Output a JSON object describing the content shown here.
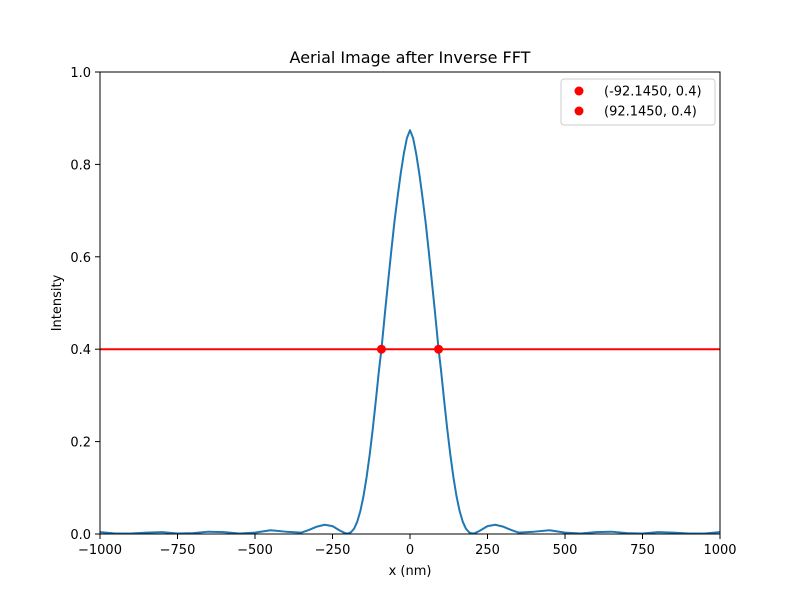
{
  "chart_data": {
    "type": "line",
    "title": "Aerial Image after Inverse FFT",
    "xlabel": "x (nm)",
    "ylabel": "Intensity",
    "xlim": [
      -1000,
      1000
    ],
    "ylim": [
      0,
      1.0
    ],
    "xticks": [
      -1000,
      -750,
      -500,
      -250,
      0,
      250,
      500,
      750,
      1000
    ],
    "xtick_labels": [
      "−1000",
      "−750",
      "−500",
      "−250",
      "0",
      "250",
      "500",
      "750",
      "1000"
    ],
    "yticks": [
      0.0,
      0.2,
      0.4,
      0.6,
      0.8,
      1.0
    ],
    "ytick_labels": [
      "0.0",
      "0.2",
      "0.4",
      "0.6",
      "0.8",
      "1.0"
    ],
    "grid": false,
    "legend_position": "top-right",
    "series": [
      {
        "kind": "line",
        "color": "#1f77b4",
        "x": [
          -1000,
          -950,
          -900,
          -850,
          -800,
          -750,
          -700,
          -650,
          -600,
          -550,
          -500,
          -450,
          -400,
          -350,
          -325,
          -300,
          -275,
          -250,
          -225,
          -210,
          -200,
          -190,
          -180,
          -170,
          -160,
          -150,
          -140,
          -130,
          -120,
          -110,
          -100,
          -92.145,
          -80,
          -70,
          -60,
          -50,
          -40,
          -30,
          -20,
          -10,
          0,
          10,
          20,
          30,
          40,
          50,
          60,
          70,
          80,
          92.145,
          100,
          110,
          120,
          130,
          140,
          150,
          160,
          170,
          180,
          190,
          200,
          210,
          225,
          250,
          275,
          300,
          325,
          350,
          400,
          450,
          500,
          550,
          600,
          650,
          700,
          750,
          800,
          850,
          900,
          950,
          1000
        ],
        "y": [
          0.004,
          0.001,
          0.001,
          0.003,
          0.004,
          0.001,
          0.002,
          0.005,
          0.004,
          0.001,
          0.003,
          0.008,
          0.005,
          0.003,
          0.009,
          0.016,
          0.02,
          0.017,
          0.007,
          0.002,
          0.001,
          0.004,
          0.012,
          0.027,
          0.05,
          0.082,
          0.123,
          0.172,
          0.228,
          0.29,
          0.355,
          0.4,
          0.484,
          0.55,
          0.615,
          0.677,
          0.73,
          0.78,
          0.823,
          0.857,
          0.874,
          0.857,
          0.823,
          0.78,
          0.73,
          0.677,
          0.615,
          0.55,
          0.484,
          0.4,
          0.355,
          0.29,
          0.228,
          0.172,
          0.123,
          0.082,
          0.05,
          0.027,
          0.012,
          0.004,
          0.001,
          0.002,
          0.007,
          0.017,
          0.02,
          0.016,
          0.009,
          0.003,
          0.005,
          0.008,
          0.003,
          0.001,
          0.004,
          0.005,
          0.002,
          0.001,
          0.004,
          0.003,
          0.001,
          0.001,
          0.004
        ]
      },
      {
        "kind": "hline",
        "color": "#ff0000",
        "y": 0.4
      },
      {
        "kind": "scatter",
        "name": "(-92.1450, 0.4)",
        "color": "#ff0000",
        "x": [
          -92.145
        ],
        "y": [
          0.4
        ]
      },
      {
        "kind": "scatter",
        "name": "(92.1450, 0.4)",
        "color": "#ff0000",
        "x": [
          92.145
        ],
        "y": [
          0.4
        ]
      }
    ]
  }
}
